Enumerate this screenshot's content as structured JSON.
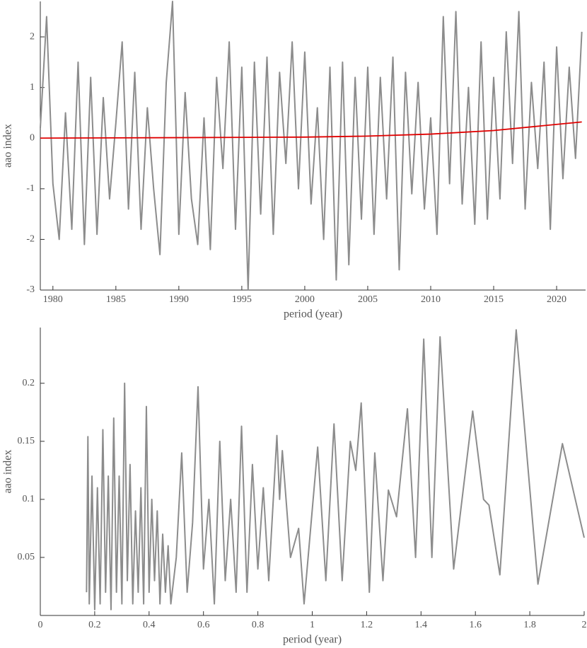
{
  "chart_data": [
    {
      "type": "line",
      "xlabel": "period (year)",
      "ylabel": "aao index",
      "xlim": [
        1979,
        2022.3
      ],
      "ylim": [
        -3,
        2.7
      ],
      "xticks": [
        1980,
        1985,
        1990,
        1995,
        2000,
        2005,
        2010,
        2015,
        2020
      ],
      "yticks": [
        -3,
        -2,
        -1,
        0,
        1,
        2
      ],
      "series": [
        {
          "color": "#8c8c8c",
          "x": [
            1979,
            1979.5,
            1980,
            1980.5,
            1981,
            1981.5,
            1982,
            1982.5,
            1983,
            1983.5,
            1984,
            1984.5,
            1985,
            1985.5,
            1986,
            1986.5,
            1987,
            1987.5,
            1988,
            1988.5,
            1989,
            1989.5,
            1990,
            1990.5,
            1991,
            1991.5,
            1992,
            1992.5,
            1993,
            1993.5,
            1994,
            1994.5,
            1995,
            1995.5,
            1996,
            1996.5,
            1997,
            1997.5,
            1998,
            1998.5,
            1999,
            1999.5,
            2000,
            2000.5,
            2001,
            2001.5,
            2002,
            2002.5,
            2003,
            2003.5,
            2004,
            2004.5,
            2005,
            2005.5,
            2006,
            2006.5,
            2007,
            2007.5,
            2008,
            2008.5,
            2009,
            2009.5,
            2010,
            2010.5,
            2011,
            2011.5,
            2012,
            2012.5,
            2013,
            2013.5,
            2014,
            2014.5,
            2015,
            2015.5,
            2016,
            2016.5,
            2017,
            2017.5,
            2018,
            2018.5,
            2019,
            2019.5,
            2020,
            2020.5,
            2021,
            2021.5,
            2022
          ],
          "values": [
            0.2,
            2.4,
            -0.9,
            -2.0,
            0.5,
            -1.8,
            1.5,
            -2.1,
            1.2,
            -1.9,
            0.8,
            -1.2,
            0.3,
            1.9,
            -1.4,
            1.3,
            -1.8,
            0.6,
            -1.0,
            -2.3,
            1.1,
            2.7,
            -1.9,
            0.9,
            -1.2,
            -2.1,
            0.4,
            -2.2,
            1.2,
            -0.6,
            1.9,
            -1.8,
            1.4,
            -3.0,
            1.5,
            -1.5,
            1.6,
            -1.9,
            1.3,
            -0.5,
            1.9,
            -1.0,
            1.7,
            -1.3,
            0.6,
            -2.0,
            1.4,
            -2.8,
            1.5,
            -2.5,
            1.2,
            -1.6,
            1.4,
            -1.9,
            1.2,
            -1.2,
            1.6,
            -2.6,
            1.3,
            -1.1,
            1.1,
            -1.4,
            0.4,
            -1.9,
            2.4,
            -0.9,
            2.5,
            -1.3,
            1.0,
            -1.7,
            1.9,
            -1.6,
            1.2,
            -1.2,
            2.1,
            -0.5,
            2.5,
            -1.4,
            1.1,
            -0.6,
            1.5,
            -1.8,
            1.8,
            -0.8,
            1.4,
            -0.4,
            2.1
          ]
        },
        {
          "color": "#e00000",
          "x": [
            1979,
            1990,
            2000,
            2005,
            2010,
            2015,
            2022
          ],
          "values": [
            0,
            0.01,
            0.02,
            0.04,
            0.08,
            0.15,
            0.32
          ]
        }
      ]
    },
    {
      "type": "line",
      "xlabel": "period (year)",
      "ylabel": "aao index",
      "xlim": [
        0,
        2
      ],
      "ylim": [
        0,
        0.248
      ],
      "xticks": [
        0,
        0.2,
        0.4,
        0.6,
        0.8,
        1,
        1.2,
        1.4,
        1.6,
        1.8,
        2
      ],
      "yticks": [
        0.05,
        0.1,
        0.15,
        0.2
      ],
      "series": [
        {
          "color": "#8c8c8c",
          "x": [
            0.17,
            0.175,
            0.18,
            0.19,
            0.2,
            0.21,
            0.22,
            0.23,
            0.24,
            0.25,
            0.26,
            0.27,
            0.28,
            0.29,
            0.3,
            0.31,
            0.32,
            0.33,
            0.34,
            0.35,
            0.36,
            0.37,
            0.38,
            0.39,
            0.4,
            0.41,
            0.42,
            0.43,
            0.44,
            0.45,
            0.46,
            0.47,
            0.48,
            0.5,
            0.52,
            0.54,
            0.56,
            0.58,
            0.6,
            0.62,
            0.64,
            0.66,
            0.68,
            0.7,
            0.72,
            0.74,
            0.76,
            0.78,
            0.8,
            0.82,
            0.84,
            0.87,
            0.88,
            0.89,
            0.92,
            0.95,
            0.97,
            1.02,
            1.05,
            1.08,
            1.11,
            1.14,
            1.16,
            1.18,
            1.21,
            1.23,
            1.26,
            1.28,
            1.31,
            1.35,
            1.38,
            1.41,
            1.44,
            1.47,
            1.52,
            1.59,
            1.63,
            1.65,
            1.69,
            1.75,
            1.83,
            1.92,
            2.0
          ],
          "values": [
            0.02,
            0.154,
            0.01,
            0.12,
            0.005,
            0.11,
            0.01,
            0.16,
            0.02,
            0.12,
            0.005,
            0.17,
            0.02,
            0.12,
            0.01,
            0.2,
            0.03,
            0.13,
            0.01,
            0.09,
            0.02,
            0.11,
            0.01,
            0.18,
            0.02,
            0.1,
            0.03,
            0.09,
            0.01,
            0.07,
            0.02,
            0.06,
            0.01,
            0.05,
            0.14,
            0.02,
            0.08,
            0.197,
            0.04,
            0.1,
            0.01,
            0.15,
            0.03,
            0.1,
            0.02,
            0.163,
            0.02,
            0.13,
            0.04,
            0.11,
            0.03,
            0.155,
            0.1,
            0.142,
            0.05,
            0.075,
            0.01,
            0.145,
            0.03,
            0.165,
            0.03,
            0.15,
            0.125,
            0.183,
            0.02,
            0.14,
            0.03,
            0.108,
            0.085,
            0.178,
            0.05,
            0.238,
            0.05,
            0.24,
            0.04,
            0.176,
            0.1,
            0.095,
            0.035,
            0.246,
            0.027,
            0.148,
            0.067
          ]
        }
      ]
    }
  ]
}
